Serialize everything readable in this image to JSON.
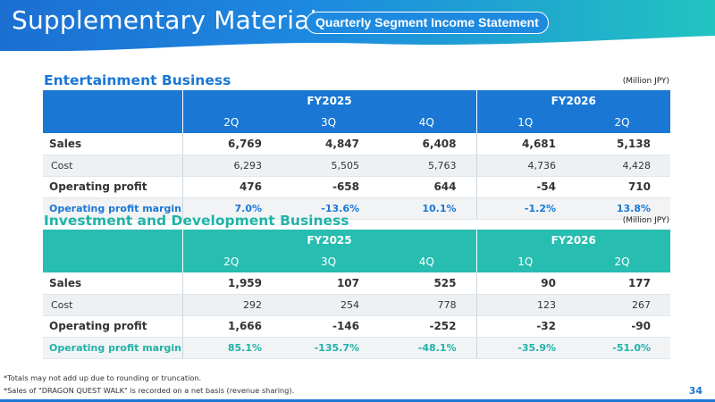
{
  "header": {
    "title": "Supplementary Material",
    "subtitle": "Quarterly Segment Income Statement"
  },
  "sections": [
    {
      "title": "Entertainment Business",
      "unit": "(Million JPY)",
      "color": "#1a77d4",
      "fy_labels": [
        "FY2025",
        "FY2026"
      ],
      "quarters": [
        "2Q",
        "3Q",
        "4Q",
        "1Q",
        "2Q"
      ],
      "rows": [
        {
          "label": "Sales",
          "values": [
            "6,769",
            "4,847",
            "6,408",
            "4,681",
            "5,138"
          ]
        },
        {
          "label": "Cost",
          "values": [
            "6,293",
            "5,505",
            "5,763",
            "4,736",
            "4,428"
          ]
        },
        {
          "label": "Operating profit",
          "values": [
            "476",
            "-658",
            "644",
            "-54",
            "710"
          ]
        },
        {
          "label": "Operating profit margin",
          "values": [
            "7.0%",
            "-13.6%",
            "10.1%",
            "-1.2%",
            "13.8%"
          ]
        }
      ]
    },
    {
      "title": "Investment and Development Business",
      "unit": "(Million JPY)",
      "color": "#27bdb0",
      "fy_labels": [
        "FY2025",
        "FY2026"
      ],
      "quarters": [
        "2Q",
        "3Q",
        "4Q",
        "1Q",
        "2Q"
      ],
      "rows": [
        {
          "label": "Sales",
          "values": [
            "1,959",
            "107",
            "525",
            "90",
            "177"
          ]
        },
        {
          "label": "Cost",
          "values": [
            "292",
            "254",
            "778",
            "123",
            "267"
          ]
        },
        {
          "label": "Operating profit",
          "values": [
            "1,666",
            "-146",
            "-252",
            "-32",
            "-90"
          ]
        },
        {
          "label": "Operating profit margin",
          "values": [
            "85.1%",
            "-135.7%",
            "-48.1%",
            "-35.9%",
            "-51.0%"
          ]
        }
      ]
    }
  ],
  "footnotes": [
    "*Totals may not add up due to rounding or truncation.",
    "*Sales of \"DRAGON QUEST WALK\" is recorded on a net basis (revenue sharing)."
  ],
  "page_number": "34"
}
